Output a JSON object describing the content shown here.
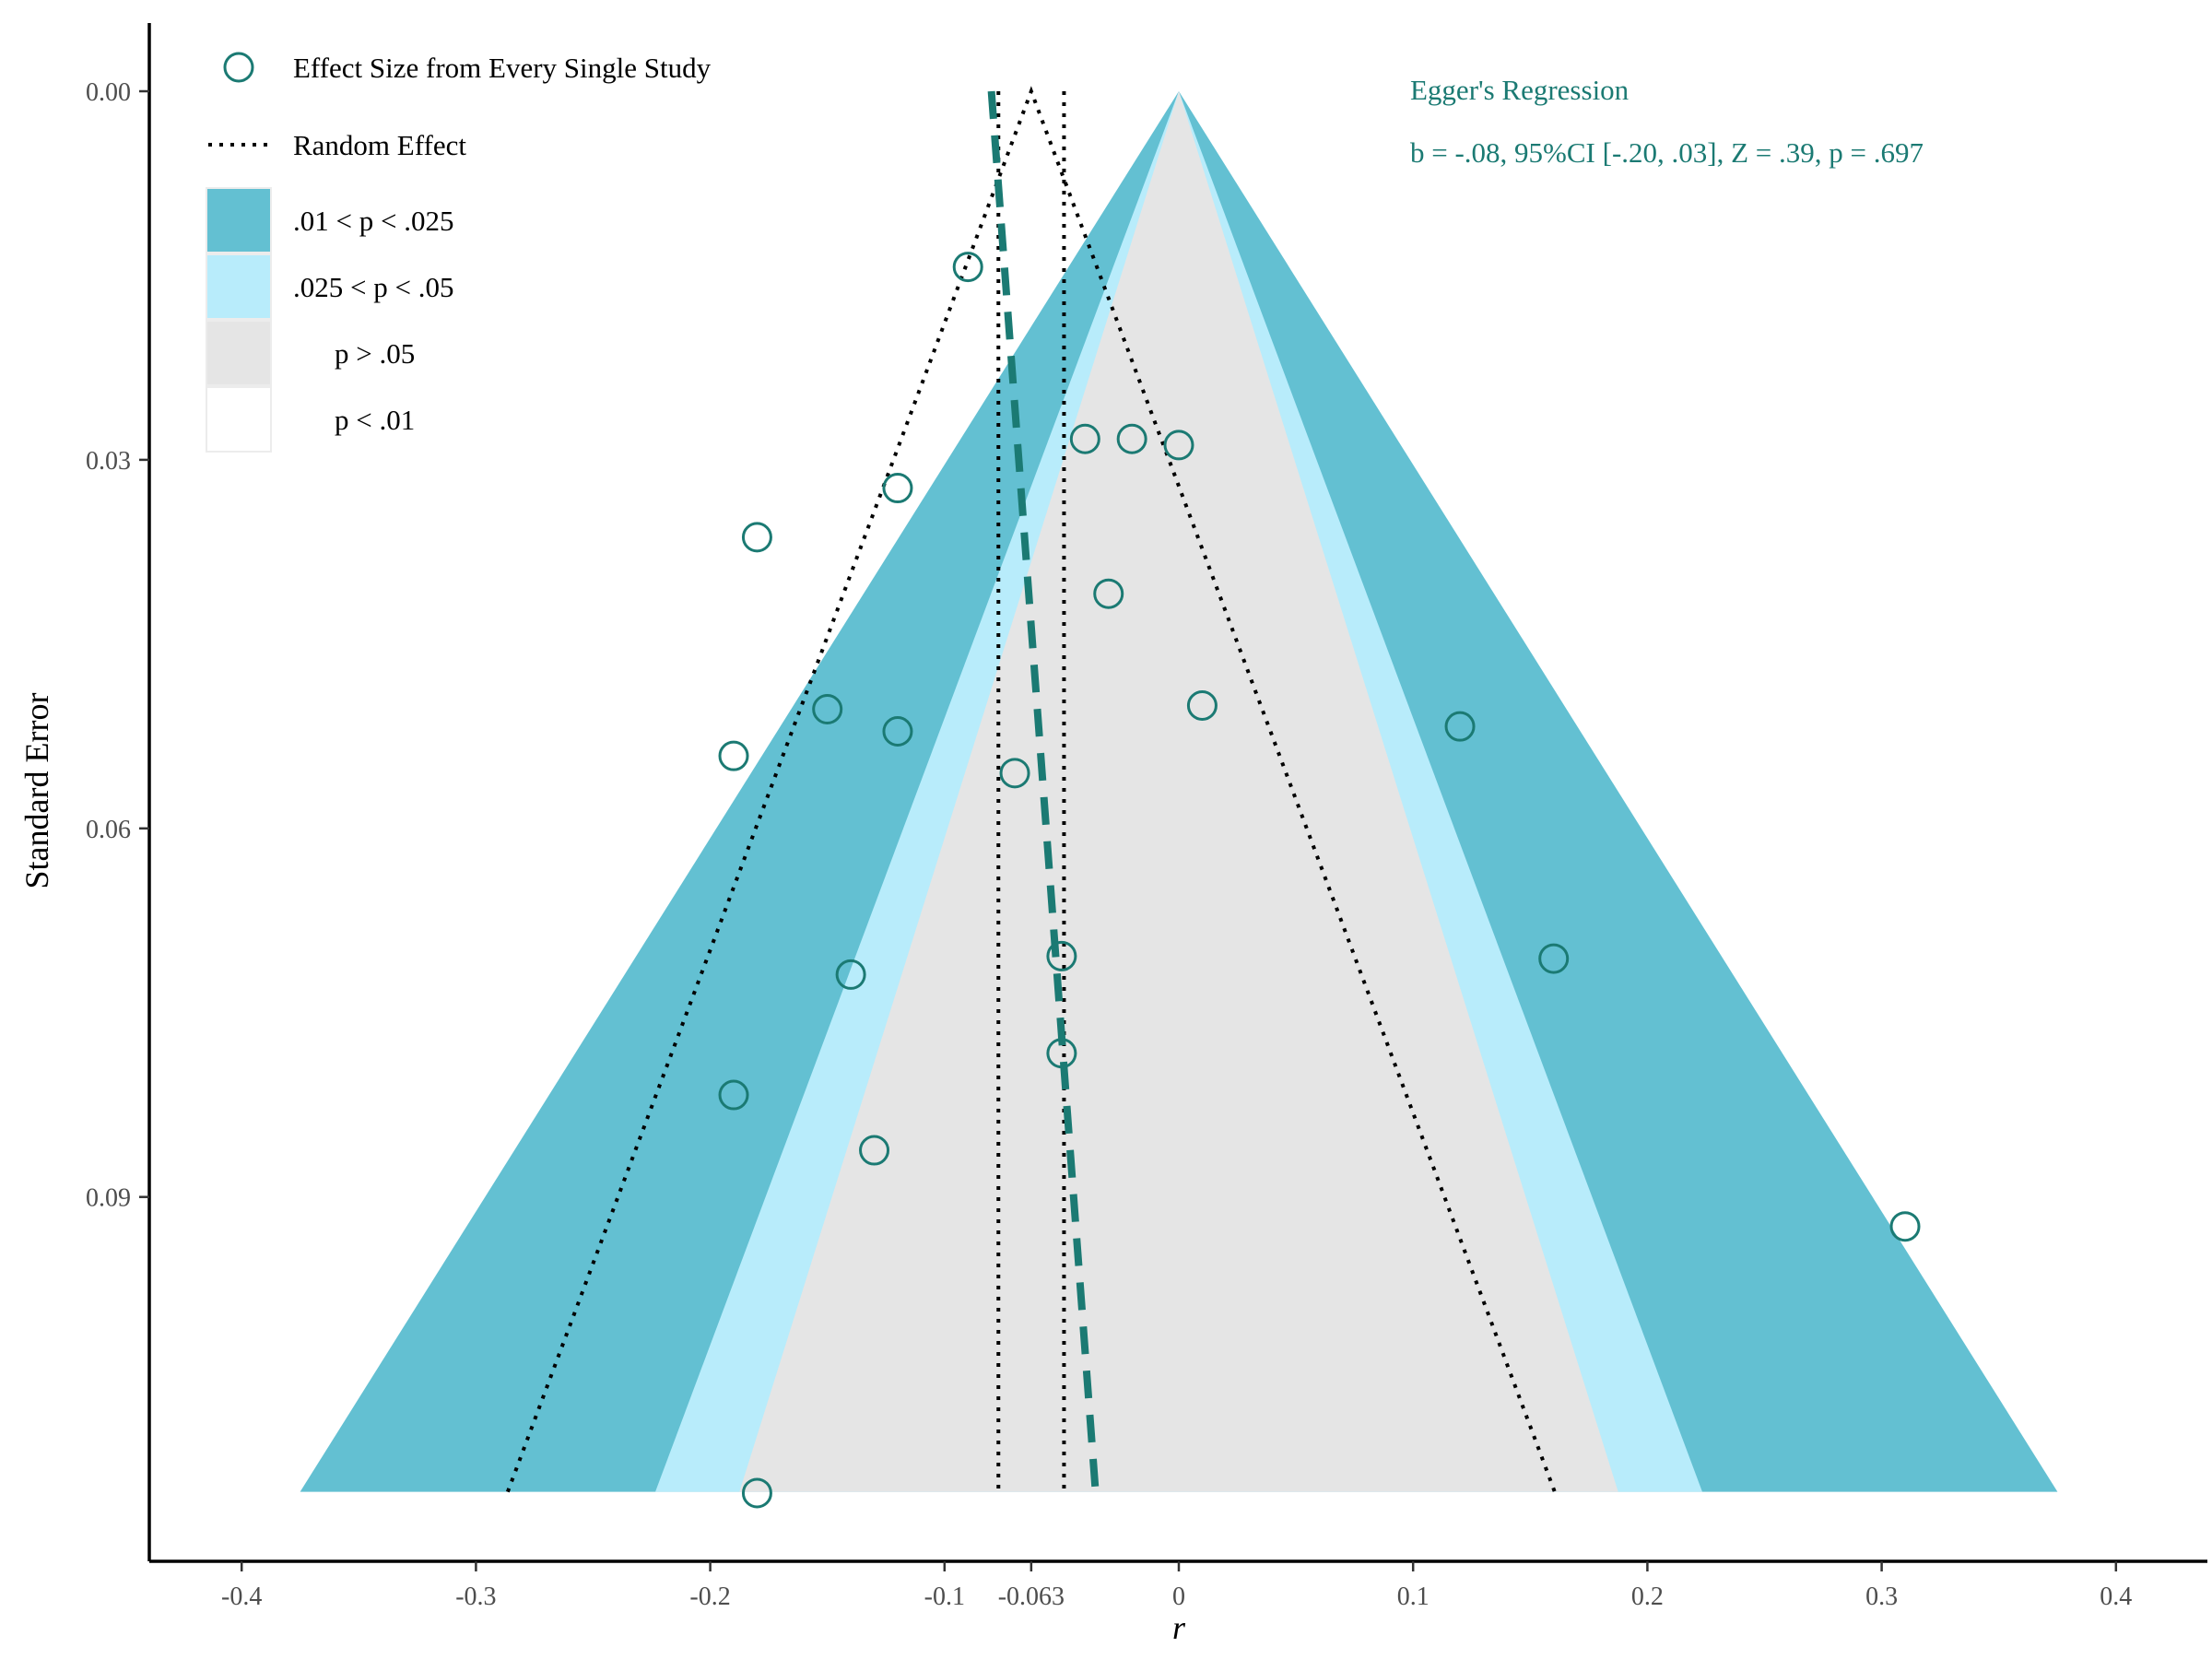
{
  "chart_data": {
    "type": "scatter",
    "subtype": "contour-enhanced funnel plot",
    "xlabel": "r",
    "ylabel": "Standard Error",
    "xlim": [
      -0.4,
      0.4
    ],
    "ylim": [
      0.0,
      0.114
    ],
    "y_reversed": true,
    "x_ticks": [
      -0.4,
      -0.3,
      -0.2,
      -0.1,
      -0.063,
      0,
      0.1,
      0.2,
      0.3,
      0.4
    ],
    "x_tick_labels": [
      "-0.4",
      "-0.3",
      "-0.2",
      "-0.1",
      "-0.063",
      "0",
      "0.1",
      "0.2",
      "0.3",
      "0.4"
    ],
    "y_ticks": [
      0.0,
      0.03,
      0.06,
      0.09
    ],
    "y_tick_labels": [
      "0.00",
      "0.03",
      "0.06",
      "0.09"
    ],
    "grid": false,
    "funnel_apex": 0,
    "max_se": 0.114,
    "contours": [
      {
        "label": ".01 < p < .025",
        "z": 3.29,
        "color": "#63c0d2"
      },
      {
        "label": ".025 < p < .05",
        "z": 1.96,
        "color": "#b8ecfb"
      },
      {
        "label": "p > .05",
        "z": 1.645,
        "color": "#e5e5e5"
      },
      {
        "label": "p < .01",
        "z": null,
        "color": "#ffffff"
      }
    ],
    "random_effect": {
      "estimate": -0.063,
      "ci": [
        -0.077,
        -0.049
      ],
      "z": 1.96,
      "color": "#000000"
    },
    "egger_line": {
      "intercept": -0.08,
      "slope": 0.39,
      "color": "#1b7a73"
    },
    "points": [
      {
        "x": -0.09,
        "y": 0.0143
      },
      {
        "x": -0.04,
        "y": 0.0283
      },
      {
        "x": -0.02,
        "y": 0.0283
      },
      {
        "x": 0.0,
        "y": 0.0288
      },
      {
        "x": -0.12,
        "y": 0.0323
      },
      {
        "x": -0.18,
        "y": 0.0363
      },
      {
        "x": -0.03,
        "y": 0.0409
      },
      {
        "x": -0.15,
        "y": 0.0503
      },
      {
        "x": 0.01,
        "y": 0.05
      },
      {
        "x": -0.12,
        "y": 0.0521
      },
      {
        "x": 0.12,
        "y": 0.0517
      },
      {
        "x": -0.19,
        "y": 0.0541
      },
      {
        "x": -0.07,
        "y": 0.0555
      },
      {
        "x": -0.05,
        "y": 0.0704
      },
      {
        "x": 0.16,
        "y": 0.0706
      },
      {
        "x": -0.14,
        "y": 0.0719
      },
      {
        "x": -0.05,
        "y": 0.0783
      },
      {
        "x": -0.19,
        "y": 0.0817
      },
      {
        "x": -0.13,
        "y": 0.0862
      },
      {
        "x": 0.31,
        "y": 0.0924
      },
      {
        "x": -0.18,
        "y": 0.1141
      }
    ],
    "point_color": "#1b7a73",
    "legend": {
      "points_label": "Effect Size from Every Single Study",
      "line_label": "Random Effect",
      "position": "top-left"
    },
    "annotation": {
      "title": "Egger's Regression",
      "text": "b = -.08, 95%CI [-.20, .03], Z = .39, p = .697",
      "position": "top-right",
      "color": "#1b7a73"
    }
  }
}
